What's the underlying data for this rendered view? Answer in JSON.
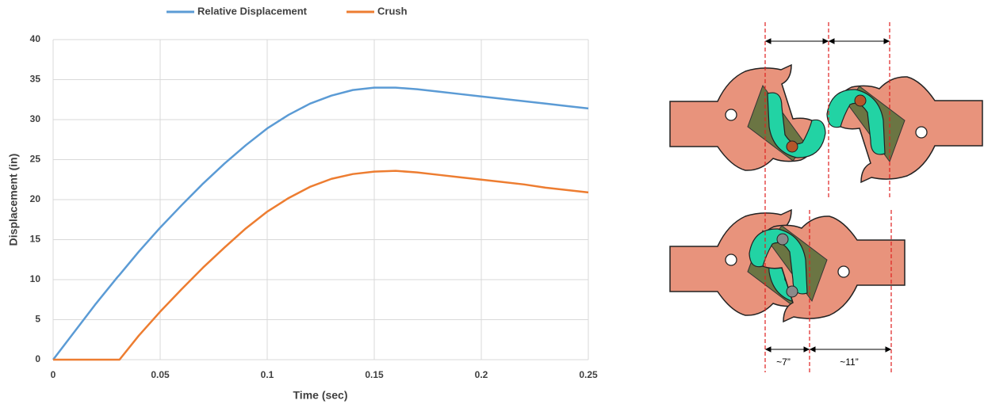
{
  "chart_data": {
    "type": "line",
    "x_label": "Time (sec)",
    "y_label": "Displacement (in)",
    "x": [
      0,
      0.01,
      0.02,
      0.03,
      0.031,
      0.04,
      0.05,
      0.06,
      0.07,
      0.08,
      0.09,
      0.1,
      0.11,
      0.12,
      0.13,
      0.14,
      0.15,
      0.16,
      0.17,
      0.18,
      0.19,
      0.2,
      0.21,
      0.22,
      0.23,
      0.24,
      0.25
    ],
    "series": [
      {
        "name": "Relative Displacement",
        "color": "#5b9bd5",
        "values": [
          0,
          3.5,
          7,
          10.3,
          10.6,
          13.5,
          16.5,
          19.3,
          22,
          24.5,
          26.8,
          28.9,
          30.6,
          32,
          33,
          33.7,
          34,
          34,
          33.8,
          33.5,
          33.2,
          32.9,
          32.6,
          32.3,
          32,
          31.7,
          31.4
        ]
      },
      {
        "name": "Crush",
        "color": "#ed7d31",
        "values": [
          0,
          0,
          0,
          0,
          0,
          3,
          6,
          8.8,
          11.5,
          14,
          16.4,
          18.5,
          20.2,
          21.6,
          22.6,
          23.2,
          23.5,
          23.6,
          23.4,
          23.1,
          22.8,
          22.5,
          22.2,
          21.9,
          21.5,
          21.2,
          20.9
        ]
      }
    ],
    "xlim": [
      0,
      0.25
    ],
    "xticks": [
      0,
      0.05,
      0.1,
      0.15,
      0.2,
      0.25
    ],
    "ylim": [
      0,
      40
    ],
    "yticks": [
      0,
      5,
      10,
      15,
      20,
      25,
      30,
      35,
      40
    ],
    "grid": true,
    "legend": "top"
  },
  "diagram": {
    "labels": [
      "~7”",
      "~11”"
    ]
  }
}
